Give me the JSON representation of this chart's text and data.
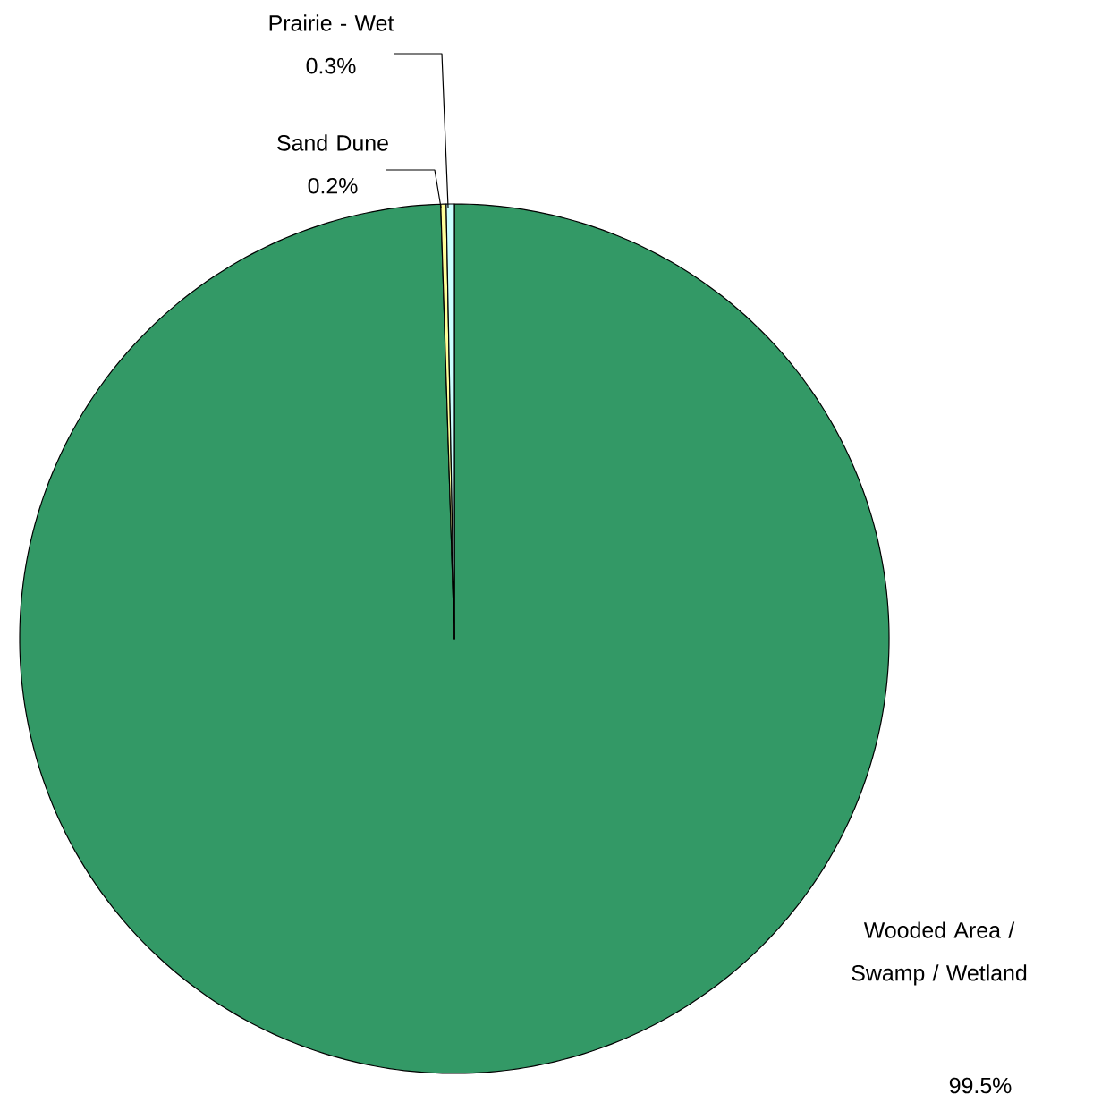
{
  "chart_data": {
    "type": "pie",
    "categories": [
      "Wooded Area / Swamp / Wetland",
      "Sand Dune",
      "Prairie - Wet"
    ],
    "values": [
      99.5,
      0.2,
      0.3
    ],
    "value_labels": [
      "99.5%",
      "0.2%",
      "0.3%"
    ],
    "colors": [
      "#339966",
      "#ffff99",
      "#ccffff"
    ]
  }
}
